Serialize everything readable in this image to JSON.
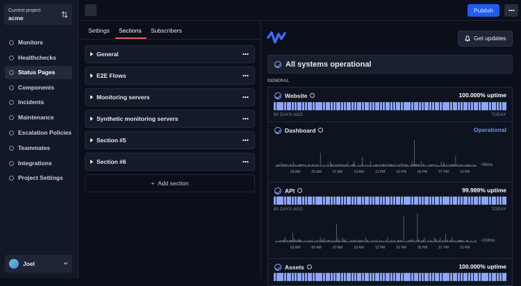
{
  "sidebar": {
    "project_label": "Current project",
    "project_name": "acme",
    "nav": [
      "Monitors",
      "Healthchecks",
      "Status Pages",
      "Components",
      "Incidents",
      "Maintenance",
      "Escalation Policies",
      "Teammates",
      "Integrations",
      "Project Settings"
    ],
    "user": "Joel"
  },
  "topbar": {
    "publish": "Publish"
  },
  "editor": {
    "tabs": [
      "Settings",
      "Sections",
      "Subscribers"
    ],
    "sections": [
      "General",
      "E2E Flows",
      "Monitoring servers",
      "Synthetic monitoring servers",
      "Section #5",
      "Section #6"
    ],
    "add_section": "Add section"
  },
  "preview": {
    "get_updates": "Get updates",
    "status": "All systems operational",
    "group": "GENERAL",
    "monitors": [
      {
        "name": "Website",
        "status": "100.000% uptime",
        "from": "90 DAYS AGO",
        "to": "TODAY"
      },
      {
        "name": "Dashboard",
        "status": "Operational",
        "times": [
          "03 AM",
          "05 AM",
          "07 AM",
          "10 AM",
          "12 PM",
          "03 PM",
          "05 PM",
          "07 PM",
          "10 PM"
        ],
        "latency": "~80ms"
      },
      {
        "name": "API",
        "status": "99.989% uptime",
        "from": "90 DAYS AGO",
        "to": "TODAY",
        "times": [
          "03 AM",
          "05 AM",
          "07 AM",
          "10 AM",
          "12 PM",
          "03 PM",
          "05 PM",
          "07 PM",
          "10 PM"
        ],
        "latency": "~218ms"
      },
      {
        "name": "Assets",
        "status": "100.000% uptime"
      }
    ]
  }
}
